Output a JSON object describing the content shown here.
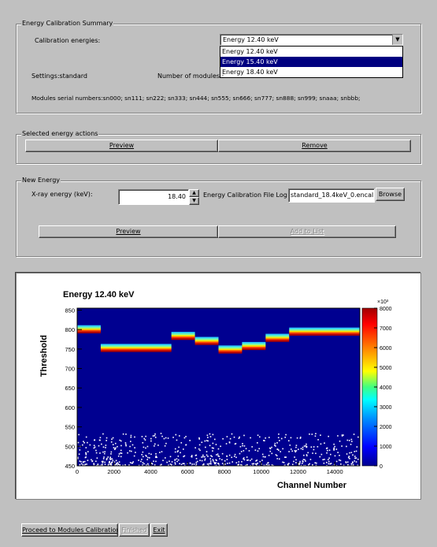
{
  "summary": {
    "legend": "Energy Calibration Summary",
    "calibration_energies_label": "Calibration energies:",
    "dropdown_selected": "Energy 12.40 keV",
    "dropdown_options": [
      "Energy 12.40 keV",
      "Energy 15.40 keV",
      "Energy 18.40 keV"
    ],
    "dropdown_highlight_index": 1,
    "settings_label": "Settings:standard",
    "modules_label": "Number of modules :",
    "modules_serial": "Modules serial numbers:sn000; sn111; sn222; sn333; sn444; sn555; sn666; sn777; sn888; sn999; snaaa; snbbb;"
  },
  "selected_actions": {
    "legend": "Selected energy actions",
    "preview_label": "Preview",
    "remove_label": "Remove"
  },
  "new_energy": {
    "legend": "New Energy",
    "xray_label": "X-ray energy (keV):",
    "xray_value": "18.40",
    "file_label": "Energy Calibration File Log",
    "file_value": "standard_18.4keV_0.encal",
    "browse_label": "Browse",
    "preview_label": "Preview",
    "add_label": "Add to List"
  },
  "footer": {
    "proceed_label": "Proceed to Modules Calibration",
    "finished_label": "Finished",
    "exit_label": "Exit"
  },
  "chart_data": {
    "type": "heatmap",
    "title": "Energy 12.40 keV",
    "xlabel": "Channel Number",
    "ylabel": "Threshold",
    "xlim": [
      0,
      15360
    ],
    "ylim": [
      450,
      855
    ],
    "x_ticks": [
      "0",
      "2000",
      "4000",
      "6000",
      "8000",
      "10000",
      "12000",
      "14000"
    ],
    "y_ticks": [
      "450",
      "500",
      "550",
      "600",
      "650",
      "700",
      "750",
      "800",
      "850"
    ],
    "z_range": [
      0,
      8000
    ],
    "z_ticks": [
      "0",
      "1000",
      "2000",
      "3000",
      "4000",
      "5000",
      "6000",
      "7000",
      "8000"
    ],
    "z_multiplier": "×10³",
    "bands": [
      {
        "x_start": 0,
        "x_end": 1280,
        "threshold": 801
      },
      {
        "x_start": 1280,
        "x_end": 5120,
        "threshold": 753
      },
      {
        "x_start": 5120,
        "x_end": 6400,
        "threshold": 784
      },
      {
        "x_start": 6400,
        "x_end": 7680,
        "threshold": 771
      },
      {
        "x_start": 7680,
        "x_end": 8960,
        "threshold": 749
      },
      {
        "x_start": 8960,
        "x_end": 10240,
        "threshold": 758
      },
      {
        "x_start": 10240,
        "x_end": 11520,
        "threshold": 779
      },
      {
        "x_start": 11520,
        "x_end": 15360,
        "threshold": 795
      }
    ]
  }
}
